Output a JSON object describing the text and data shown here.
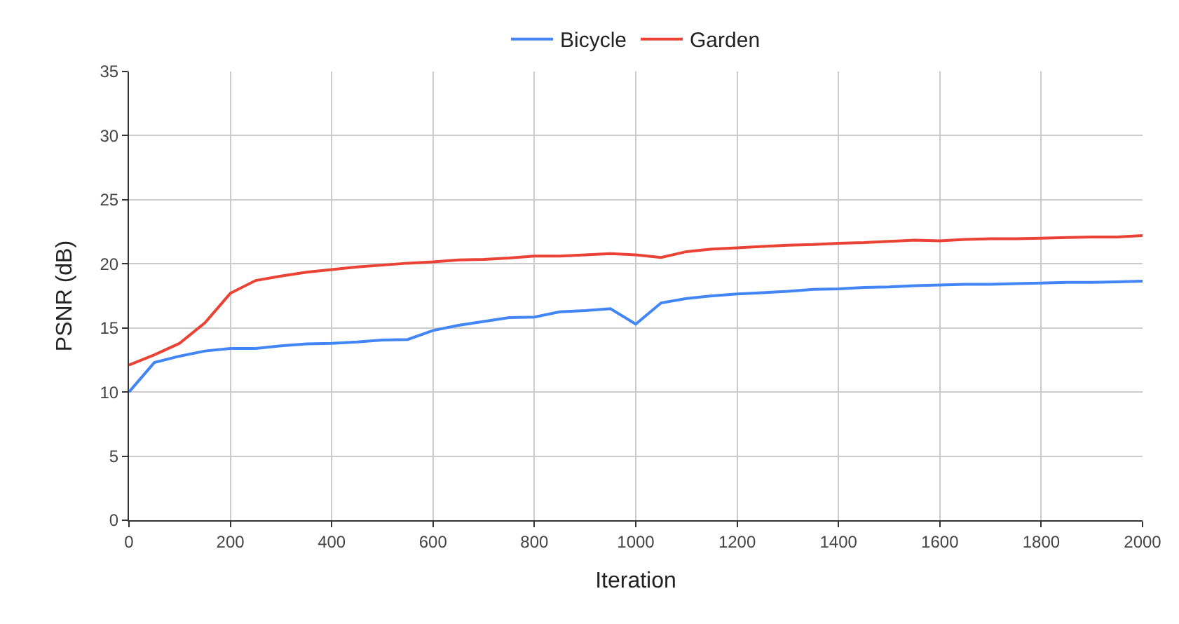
{
  "chart_data": {
    "type": "line",
    "xlabel": "Iteration",
    "ylabel": "PSNR (dB)",
    "x": [
      0,
      50,
      100,
      150,
      200,
      250,
      300,
      350,
      400,
      450,
      500,
      550,
      600,
      650,
      700,
      750,
      800,
      850,
      900,
      950,
      1000,
      1050,
      1100,
      1150,
      1200,
      1250,
      1300,
      1350,
      1400,
      1450,
      1500,
      1550,
      1600,
      1650,
      1700,
      1750,
      1800,
      1850,
      1900,
      1950,
      2000
    ],
    "series": [
      {
        "name": "Bicycle",
        "color": "#4285f4",
        "values": [
          10,
          12.3,
          12.8,
          13.2,
          13.4,
          13.4,
          13.6,
          13.75,
          13.8,
          13.9,
          14.05,
          14.1,
          14.8,
          15.2,
          15.5,
          15.8,
          15.85,
          16.25,
          16.35,
          16.5,
          15.3,
          16.95,
          17.3,
          17.5,
          17.65,
          17.75,
          17.85,
          18.0,
          18.05,
          18.15,
          18.2,
          18.3,
          18.35,
          18.4,
          18.4,
          18.45,
          18.5,
          18.55,
          18.55,
          18.6,
          18.65
        ]
      },
      {
        "name": "Garden",
        "color": "#ea4335",
        "values": [
          12.1,
          12.9,
          13.8,
          15.4,
          17.7,
          18.7,
          19.05,
          19.35,
          19.55,
          19.75,
          19.9,
          20.05,
          20.15,
          20.3,
          20.35,
          20.45,
          20.6,
          20.6,
          20.7,
          20.8,
          20.7,
          20.5,
          20.95,
          21.15,
          21.25,
          21.35,
          21.45,
          21.5,
          21.6,
          21.65,
          21.75,
          21.85,
          21.8,
          21.9,
          21.95,
          21.95,
          22.0,
          22.05,
          22.1,
          22.1,
          22.2
        ]
      }
    ],
    "xlim": [
      0,
      2000
    ],
    "xticks": [
      0,
      200,
      400,
      600,
      800,
      1000,
      1200,
      1400,
      1600,
      1800,
      2000
    ],
    "ylim": [
      0,
      35
    ],
    "yticks": [
      0,
      5,
      10,
      15,
      20,
      25,
      30,
      35
    ],
    "grid": true,
    "legend": "top",
    "marker": "none",
    "line_style": "solid"
  }
}
